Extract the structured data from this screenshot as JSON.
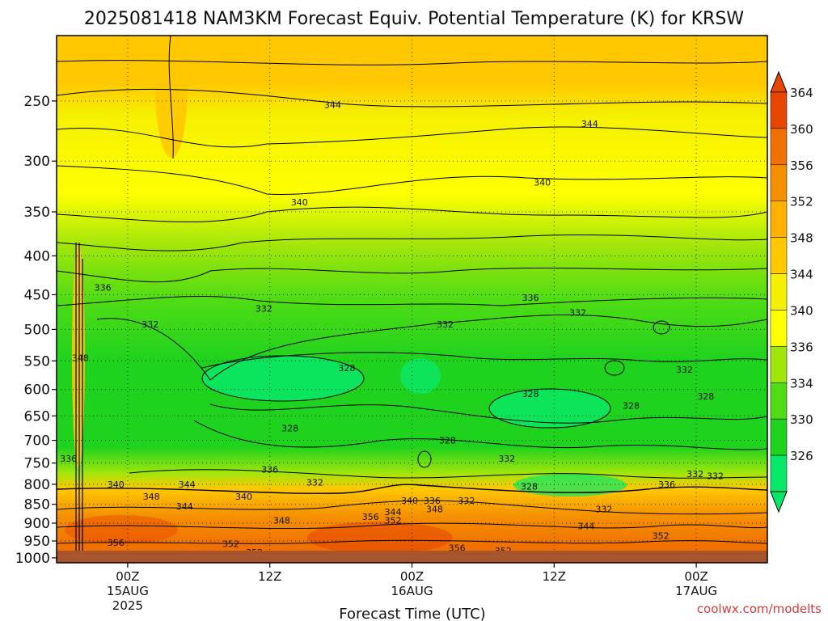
{
  "chart_data": {
    "type": "heatmap",
    "title": "2025081418 NAM3KM Forecast Equiv. Potential Temperature (K) for KRSW",
    "xlabel": "Forecast Time (UTC)",
    "ylabel": "",
    "x_ticks": [
      {
        "hours": 6,
        "lines": [
          "00Z",
          "15AUG",
          "2025"
        ]
      },
      {
        "hours": 18,
        "lines": [
          "12Z"
        ]
      },
      {
        "hours": 30,
        "lines": [
          "00Z",
          "16AUG"
        ]
      },
      {
        "hours": 42,
        "lines": [
          "12Z"
        ]
      },
      {
        "hours": 54,
        "lines": [
          "00Z",
          "17AUG"
        ]
      }
    ],
    "xlim_hours": [
      0,
      60
    ],
    "y_ticks": [
      250,
      300,
      350,
      400,
      450,
      500,
      550,
      600,
      650,
      700,
      750,
      800,
      850,
      900,
      950,
      1000
    ],
    "ylim_hPa": [
      1015,
      205
    ],
    "y_scale": "log-pressure",
    "levels": [
      326,
      330,
      334,
      336,
      340,
      344,
      348,
      352,
      356,
      360,
      364
    ],
    "level_colors": [
      "#08e868",
      "#1ed21e",
      "#50dc14",
      "#a0e60a",
      "#ffff00",
      "#f5f000",
      "#ffc800",
      "#ffb000",
      "#f59100",
      "#f07000",
      "#e64600"
    ],
    "colorbar_labels": [
      "326",
      "330",
      "334",
      "336",
      "340",
      "344",
      "348",
      "352",
      "356",
      "360",
      "364"
    ],
    "contour_labels": [
      {
        "value": "344",
        "hours": 23.3,
        "hPa": 253
      },
      {
        "value": "344",
        "hours": 45.0,
        "hPa": 268
      },
      {
        "value": "340",
        "hours": 20.5,
        "hPa": 340
      },
      {
        "value": "340",
        "hours": 41.0,
        "hPa": 320
      },
      {
        "value": "336",
        "hours": 3.9,
        "hPa": 440
      },
      {
        "value": "336",
        "hours": 40.0,
        "hPa": 454
      },
      {
        "value": "332",
        "hours": 7.9,
        "hPa": 492
      },
      {
        "value": "332",
        "hours": 17.5,
        "hPa": 469
      },
      {
        "value": "332",
        "hours": 32.8,
        "hPa": 492
      },
      {
        "value": "332",
        "hours": 44.0,
        "hPa": 475
      },
      {
        "value": "328",
        "hours": 24.5,
        "hPa": 562
      },
      {
        "value": "328",
        "hours": 40.0,
        "hPa": 608
      },
      {
        "value": "328",
        "hours": 48.5,
        "hPa": 630
      },
      {
        "value": "328",
        "hours": 54.8,
        "hPa": 612
      },
      {
        "value": "328",
        "hours": 19.7,
        "hPa": 675
      },
      {
        "value": "328",
        "hours": 33.0,
        "hPa": 700
      },
      {
        "value": "332",
        "hours": 53.0,
        "hPa": 565
      },
      {
        "value": "348",
        "hours": 2.0,
        "hPa": 545
      },
      {
        "value": "336",
        "hours": 1.0,
        "hPa": 740
      },
      {
        "value": "336",
        "hours": 18.0,
        "hPa": 765
      },
      {
        "value": "332",
        "hours": 21.8,
        "hPa": 795
      },
      {
        "value": "332",
        "hours": 38.0,
        "hPa": 740
      },
      {
        "value": "336",
        "hours": 51.5,
        "hPa": 800
      },
      {
        "value": "332",
        "hours": 53.9,
        "hPa": 775
      },
      {
        "value": "332",
        "hours": 55.6,
        "hPa": 780
      },
      {
        "value": "328",
        "hours": 39.9,
        "hPa": 805
      },
      {
        "value": "332",
        "hours": 46.2,
        "hPa": 862
      },
      {
        "value": "340",
        "hours": 5.0,
        "hPa": 800
      },
      {
        "value": "344",
        "hours": 11.0,
        "hPa": 800
      },
      {
        "value": "348",
        "hours": 8.0,
        "hPa": 830
      },
      {
        "value": "344",
        "hours": 10.8,
        "hPa": 855
      },
      {
        "value": "340",
        "hours": 15.8,
        "hPa": 830
      },
      {
        "value": "340",
        "hours": 29.8,
        "hPa": 840
      },
      {
        "value": "336",
        "hours": 31.7,
        "hPa": 840
      },
      {
        "value": "332",
        "hours": 34.6,
        "hPa": 840
      },
      {
        "value": "348",
        "hours": 31.9,
        "hPa": 862
      },
      {
        "value": "344",
        "hours": 28.4,
        "hPa": 870
      },
      {
        "value": "356",
        "hours": 26.5,
        "hPa": 882
      },
      {
        "value": "352",
        "hours": 28.4,
        "hPa": 892
      },
      {
        "value": "348",
        "hours": 19.0,
        "hPa": 892
      },
      {
        "value": "344",
        "hours": 44.7,
        "hPa": 908
      },
      {
        "value": "356",
        "hours": 5.0,
        "hPa": 955
      },
      {
        "value": "352",
        "hours": 14.7,
        "hPa": 958
      },
      {
        "value": "352",
        "hours": 16.7,
        "hPa": 983
      },
      {
        "value": "356",
        "hours": 33.8,
        "hPa": 970
      },
      {
        "value": "352",
        "hours": 37.7,
        "hPa": 978
      },
      {
        "value": "352",
        "hours": 51.0,
        "hPa": 935
      }
    ],
    "grid": true,
    "legend": "right"
  },
  "credit": "coolwx.com/modelts"
}
